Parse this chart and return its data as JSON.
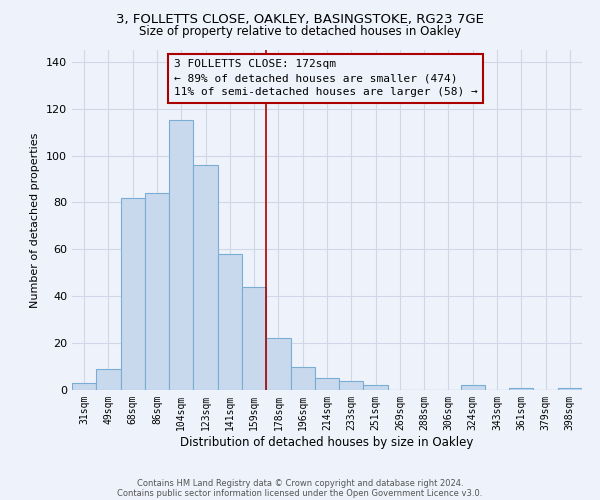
{
  "title1": "3, FOLLETTS CLOSE, OAKLEY, BASINGSTOKE, RG23 7GE",
  "title2": "Size of property relative to detached houses in Oakley",
  "xlabel": "Distribution of detached houses by size in Oakley",
  "ylabel": "Number of detached properties",
  "bar_labels": [
    "31sqm",
    "49sqm",
    "68sqm",
    "86sqm",
    "104sqm",
    "123sqm",
    "141sqm",
    "159sqm",
    "178sqm",
    "196sqm",
    "214sqm",
    "233sqm",
    "251sqm",
    "269sqm",
    "288sqm",
    "306sqm",
    "324sqm",
    "343sqm",
    "361sqm",
    "379sqm",
    "398sqm"
  ],
  "bar_values": [
    3,
    9,
    82,
    84,
    115,
    96,
    58,
    44,
    22,
    10,
    5,
    4,
    2,
    0,
    0,
    0,
    2,
    0,
    1,
    0,
    1
  ],
  "bar_color": "#c8d9ee",
  "bar_edge_color": "#7aadd4",
  "vline_index": 8,
  "annotation_text_line1": "3 FOLLETTS CLOSE: 172sqm",
  "annotation_text_line2": "← 89% of detached houses are smaller (474)",
  "annotation_text_line3": "11% of semi-detached houses are larger (58) →",
  "vline_color": "#aa0000",
  "box_edge_color": "#aa0000",
  "ylim": [
    0,
    145
  ],
  "yticks": [
    0,
    20,
    40,
    60,
    80,
    100,
    120,
    140
  ],
  "footnote1": "Contains HM Land Registry data © Crown copyright and database right 2024.",
  "footnote2": "Contains public sector information licensed under the Open Government Licence v3.0.",
  "bg_color": "#eef2fa",
  "grid_color": "#d0d8e8",
  "title1_fontsize": 9.5,
  "title2_fontsize": 8.5,
  "ylabel_fontsize": 8,
  "xlabel_fontsize": 8.5,
  "tick_fontsize": 7,
  "annotation_fontsize": 8,
  "footnote_fontsize": 6
}
